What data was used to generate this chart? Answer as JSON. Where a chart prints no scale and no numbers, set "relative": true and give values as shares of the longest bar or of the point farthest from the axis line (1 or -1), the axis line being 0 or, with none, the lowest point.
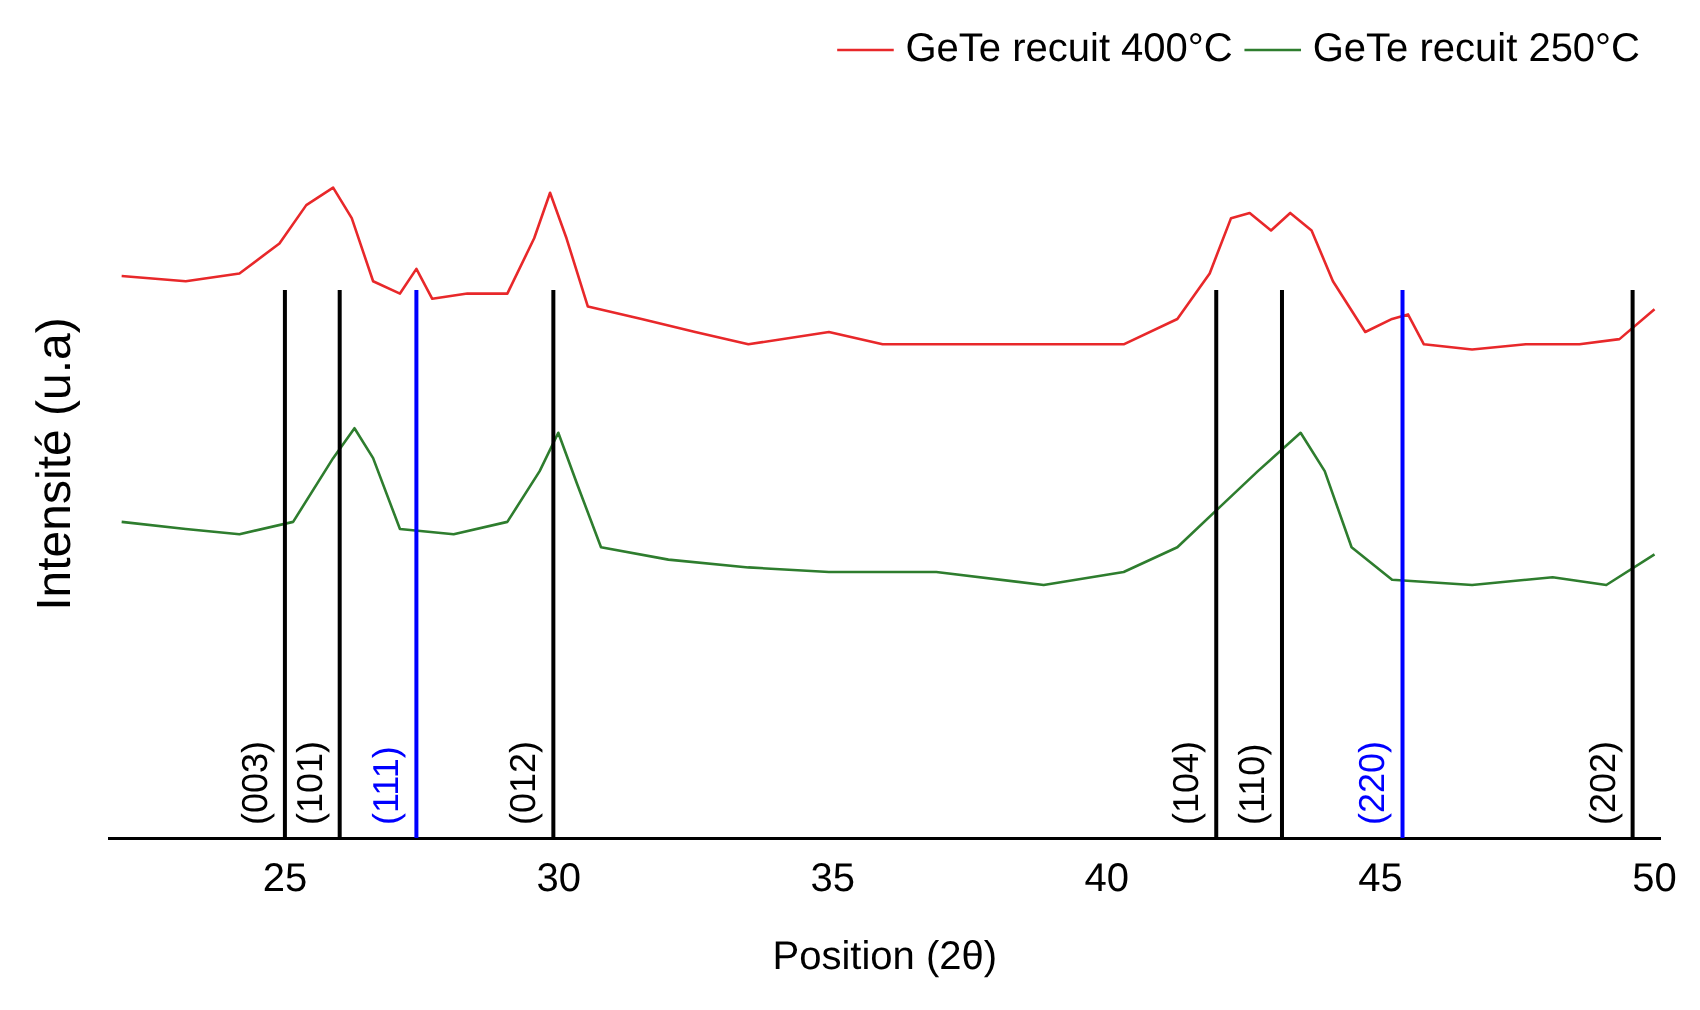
{
  "chart_data": {
    "type": "line",
    "relative": true,
    "xlabel": "Position (2θ)",
    "ylabel": "Intensité (u.a)",
    "xlim": [
      21.8,
      50.1
    ],
    "xticks": [
      25,
      30,
      35,
      40,
      45,
      50
    ],
    "legend": "top right",
    "marker": "none",
    "grid": false,
    "series": [
      {
        "name": "GeTe recuit 400°C",
        "color": "#e8282a",
        "x": [
          22.02,
          23.19,
          24.17,
          24.9,
          25.39,
          25.88,
          26.22,
          26.61,
          27.1,
          27.4,
          27.69,
          28.33,
          29.06,
          29.55,
          29.84,
          30.14,
          30.53,
          31.51,
          32.49,
          33.46,
          34.93,
          35.91,
          37.38,
          38.85,
          40.31,
          41.29,
          41.88,
          42.27,
          42.61,
          43.0,
          43.35,
          43.74,
          44.13,
          44.72,
          45.21,
          45.5,
          45.79,
          46.67,
          47.65,
          48.63,
          49.36,
          50.0
        ],
        "values": [
          0.864,
          0.856,
          0.868,
          0.914,
          0.973,
          1.0,
          0.953,
          0.856,
          0.837,
          0.875,
          0.829,
          0.837,
          0.837,
          0.922,
          0.992,
          0.922,
          0.817,
          0.798,
          0.778,
          0.759,
          0.778,
          0.759,
          0.759,
          0.759,
          0.759,
          0.798,
          0.868,
          0.953,
          0.961,
          0.934,
          0.961,
          0.934,
          0.856,
          0.778,
          0.798,
          0.805,
          0.759,
          0.751,
          0.759,
          0.759,
          0.767,
          0.813
        ]
      },
      {
        "name": "GeTe recuit 250°C",
        "color": "#2e7d2e",
        "x": [
          22.02,
          23.19,
          24.17,
          25.15,
          25.88,
          26.27,
          26.61,
          27.1,
          28.08,
          29.06,
          29.65,
          29.99,
          30.33,
          30.77,
          32.0,
          33.46,
          34.93,
          36.89,
          38.85,
          40.31,
          41.29,
          42.03,
          42.76,
          43.54,
          43.98,
          44.47,
          45.21,
          46.67,
          48.14,
          49.12,
          50.0
        ],
        "values": [
          0.486,
          0.475,
          0.467,
          0.486,
          0.584,
          0.63,
          0.584,
          0.475,
          0.467,
          0.486,
          0.564,
          0.623,
          0.545,
          0.447,
          0.428,
          0.416,
          0.409,
          0.409,
          0.389,
          0.409,
          0.447,
          0.506,
          0.564,
          0.623,
          0.564,
          0.447,
          0.397,
          0.389,
          0.401,
          0.389,
          0.436
        ]
      }
    ],
    "ref_lines": [
      {
        "axis": "x",
        "value": 25.0,
        "color": "#000000"
      },
      {
        "axis": "x",
        "value": 26.0,
        "color": "#000000"
      },
      {
        "axis": "x",
        "value": 27.4,
        "color": "#0000ff"
      },
      {
        "axis": "x",
        "value": 29.9,
        "color": "#000000"
      },
      {
        "axis": "x",
        "value": 42.0,
        "color": "#000000"
      },
      {
        "axis": "x",
        "value": 43.2,
        "color": "#000000"
      },
      {
        "axis": "x",
        "value": 45.4,
        "color": "#0000ff"
      },
      {
        "axis": "x",
        "value": 49.6,
        "color": "#000000"
      }
    ],
    "annotations": [
      {
        "text": "(003)",
        "x": 25.0,
        "y": 0.02
      },
      {
        "text": "(101)",
        "x": 26.0,
        "y": 0.02
      },
      {
        "text": "(111)",
        "x": 27.4,
        "y": 0.02
      },
      {
        "text": "(012)",
        "x": 29.9,
        "y": 0.02
      },
      {
        "text": "(104)",
        "x": 42.0,
        "y": 0.02
      },
      {
        "text": "(110)",
        "x": 43.2,
        "y": 0.02
      },
      {
        "text": "(220)",
        "x": 45.4,
        "y": 0.02
      },
      {
        "text": "(202)",
        "x": 49.6,
        "y": 0.02
      }
    ]
  }
}
